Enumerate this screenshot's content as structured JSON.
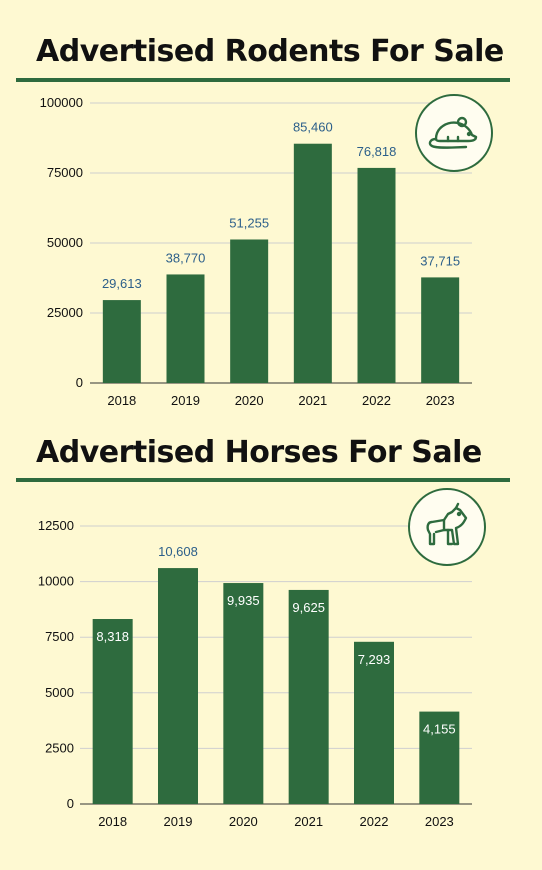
{
  "colors": {
    "background": "#fef9d2",
    "bar": "#2e6b3e",
    "grid": "#cfcfcf",
    "label_outside": "#2c5f8a",
    "label_inside": "#ffffff"
  },
  "icons": [
    "rodent-icon",
    "horse-icon"
  ],
  "chart_data": [
    {
      "type": "bar",
      "title": "Advertised Rodents For Sale",
      "categories": [
        "2018",
        "2019",
        "2020",
        "2021",
        "2022",
        "2023"
      ],
      "values": [
        29613,
        38770,
        51255,
        85460,
        76818,
        37715
      ],
      "data_labels": [
        "29,613",
        "38,770",
        "51,255",
        "85,460",
        "76,818",
        "37,715"
      ],
      "data_label_position": "above",
      "yticks": [
        "0",
        "25000",
        "50000",
        "75000",
        "100000"
      ],
      "ylim": [
        0,
        100000
      ],
      "grid": true,
      "xlabel": "",
      "ylabel": ""
    },
    {
      "type": "bar",
      "title": "Advertised Horses For Sale",
      "categories": [
        "2018",
        "2019",
        "2020",
        "2021",
        "2022",
        "2023"
      ],
      "values": [
        8318,
        10608,
        9935,
        9625,
        7293,
        4155
      ],
      "data_labels": [
        "8,318",
        "10,608",
        "9,935",
        "9,625",
        "7,293",
        "4,155"
      ],
      "data_label_position": "inside-top",
      "yticks": [
        "0",
        "2500",
        "5000",
        "7500",
        "10000",
        "12500"
      ],
      "ylim": [
        0,
        12500
      ],
      "grid": true,
      "xlabel": "",
      "ylabel": ""
    }
  ]
}
